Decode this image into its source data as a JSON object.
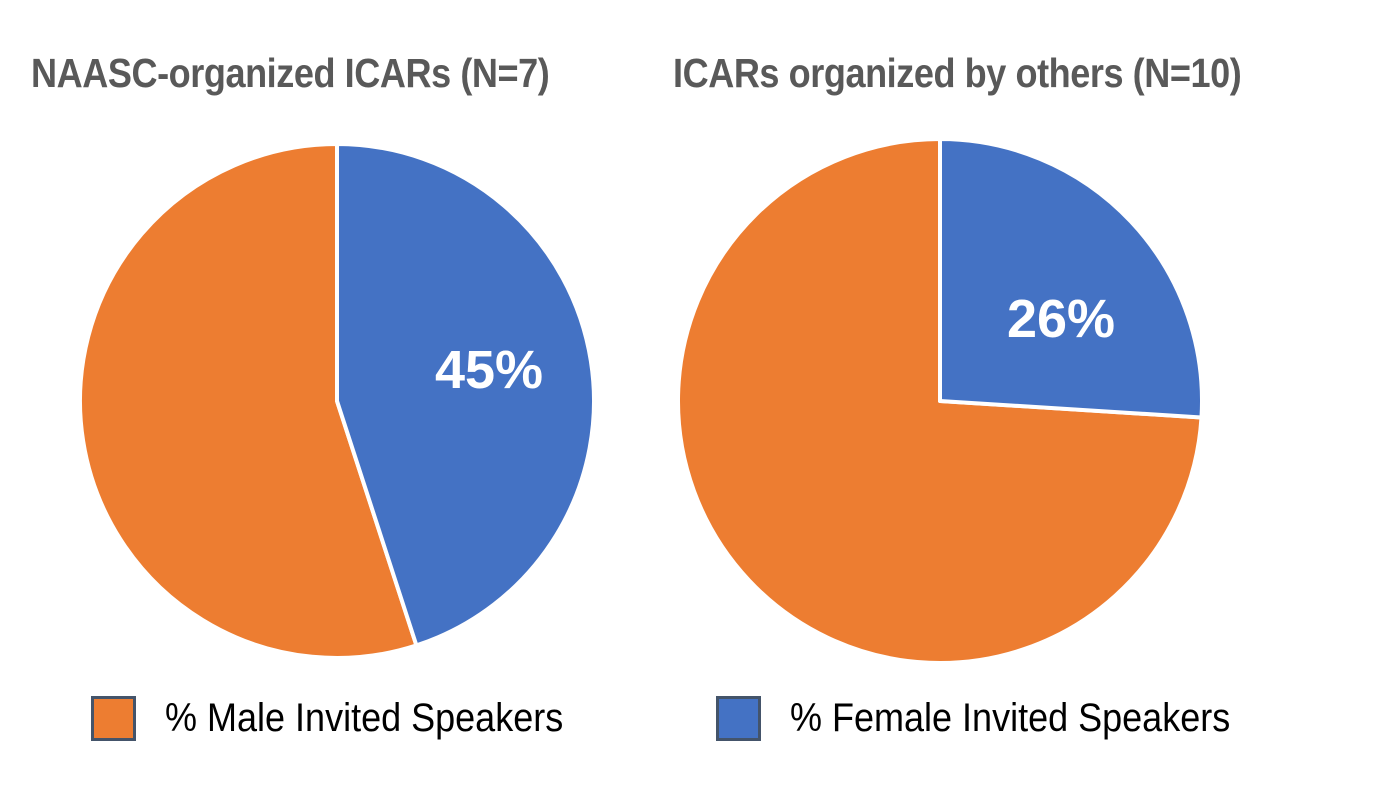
{
  "chart_data": [
    {
      "type": "pie",
      "title": "NAASC-organized ICARs (N=7)",
      "categories": [
        "% Male Invited Speakers",
        "% Female Invited Speakers"
      ],
      "values": [
        55,
        45
      ],
      "data_labels": [
        "",
        "45%"
      ],
      "colors": [
        "#ED7D31",
        "#4472C4"
      ],
      "start_angle_deg": 0,
      "direction": "clockwise",
      "legend_position": "bottom"
    },
    {
      "type": "pie",
      "title": "ICARs organized by others (N=10)",
      "categories": [
        "% Male Invited Speakers",
        "% Female Invited Speakers"
      ],
      "values": [
        74,
        26
      ],
      "data_labels": [
        "",
        "26%"
      ],
      "colors": [
        "#ED7D31",
        "#4472C4"
      ],
      "start_angle_deg": 0,
      "direction": "clockwise",
      "legend_position": "bottom"
    }
  ],
  "titles": {
    "left": "NAASC-organized ICARs (N=7)",
    "right": "ICARs organized by others (N=10)"
  },
  "labels": {
    "left_female": "45%",
    "right_female": "26%"
  },
  "legend": {
    "items": [
      {
        "label": "% Male Invited Speakers",
        "color": "#ED7D31"
      },
      {
        "label": "% Female Invited Speakers",
        "color": "#4472C4"
      }
    ],
    "swatch_border": "#44546A"
  }
}
